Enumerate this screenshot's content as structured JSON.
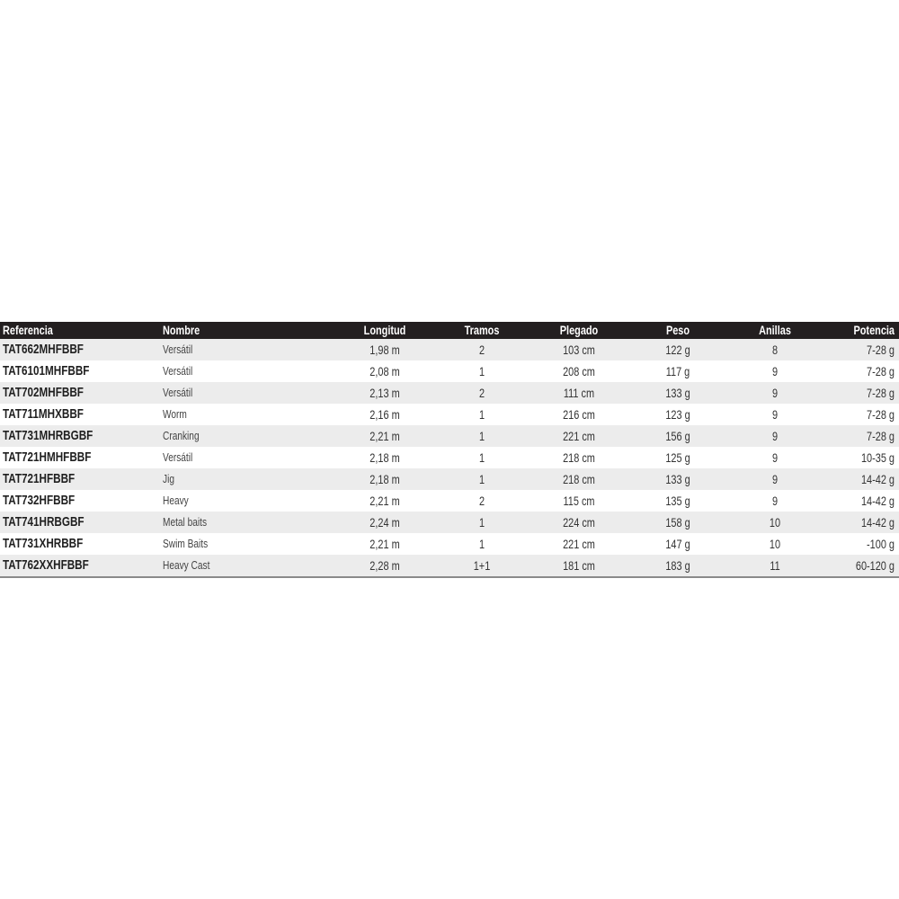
{
  "table": {
    "headers": [
      "Referencia",
      "Nombre",
      "Longitud",
      "Tramos",
      "Plegado",
      "Peso",
      "Anillas",
      "Potencia"
    ],
    "rows": [
      [
        "TAT662MHFBBF",
        "Versátil",
        "1,98 m",
        "2",
        "103 cm",
        "122 g",
        "8",
        "7-28 g"
      ],
      [
        "TAT6101MHFBBF",
        "Versátil",
        "2,08 m",
        "1",
        "208 cm",
        "117 g",
        "9",
        "7-28 g"
      ],
      [
        "TAT702MHFBBF",
        "Versátil",
        "2,13 m",
        "2",
        "111 cm",
        "133 g",
        "9",
        "7-28 g"
      ],
      [
        "TAT711MHXBBF",
        "Worm",
        "2,16 m",
        "1",
        "216 cm",
        "123 g",
        "9",
        "7-28 g"
      ],
      [
        "TAT731MHRBGBF",
        "Cranking",
        "2,21 m",
        "1",
        "221 cm",
        "156 g",
        "9",
        "7-28 g"
      ],
      [
        "TAT721HMHFBBF",
        "Versátil",
        "2,18 m",
        "1",
        "218 cm",
        "125 g",
        "9",
        "10-35 g"
      ],
      [
        "TAT721HFBBF",
        "Jig",
        "2,18 m",
        "1",
        "218 cm",
        "133 g",
        "9",
        "14-42 g"
      ],
      [
        "TAT732HFBBF",
        "Heavy",
        "2,21 m",
        "2",
        "115 cm",
        "135 g",
        "9",
        "14-42 g"
      ],
      [
        "TAT741HRBGBF",
        "Metal baits",
        "2,24 m",
        "1",
        "224 cm",
        "158 g",
        "10",
        "14-42 g"
      ],
      [
        "TAT731XHRBBF",
        "Swim Baits",
        "2,21 m",
        "1",
        "221 cm",
        "147 g",
        "10",
        "-100 g"
      ],
      [
        "TAT762XXHFBBF",
        "Heavy Cast",
        "2,28 m",
        "1+1",
        "181 cm",
        "183 g",
        "11",
        "60-120 g"
      ]
    ]
  },
  "colors": {
    "header_bg": "#231f20",
    "row_shade": "#ececec"
  }
}
